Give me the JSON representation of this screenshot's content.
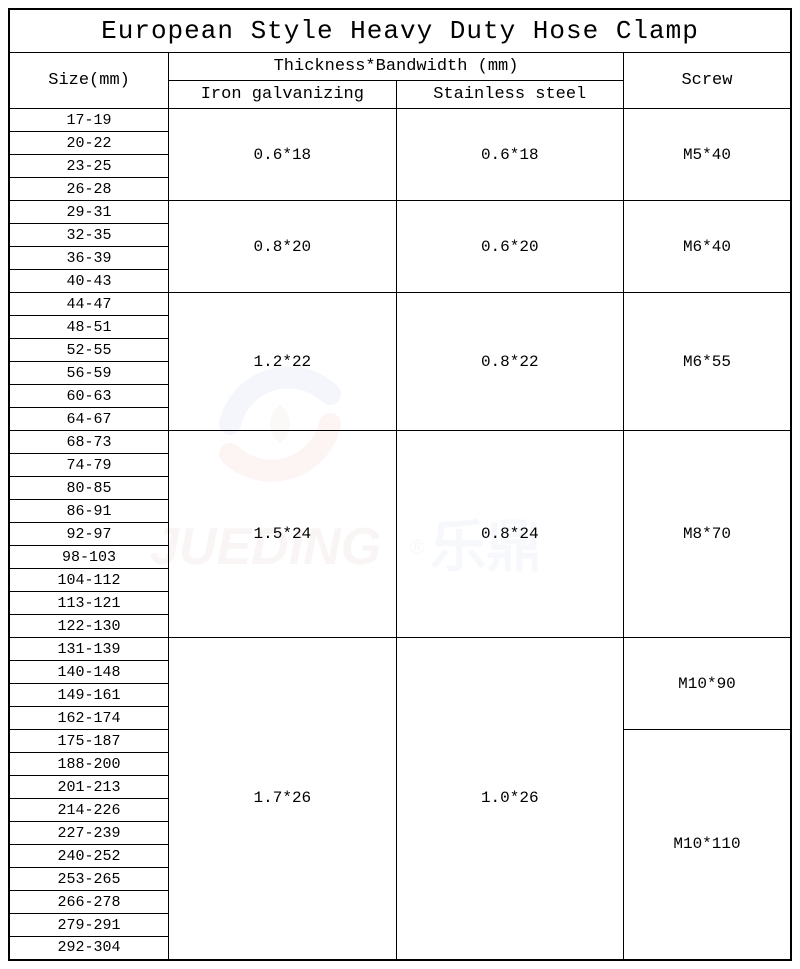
{
  "title": "European Style Heavy Duty Hose Clamp",
  "headers": {
    "size": "Size(mm)",
    "thickness_bandwidth": "Thickness*Bandwidth (mm)",
    "iron": "Iron galvanizing",
    "stainless": "Stainless steel",
    "screw": "Screw"
  },
  "groups": [
    {
      "sizes": [
        "17-19",
        "20-22",
        "23-25",
        "26-28"
      ],
      "iron": "0.6*18",
      "stainless": "0.6*18",
      "screws": [
        {
          "label": "M5*40",
          "span": 4
        }
      ]
    },
    {
      "sizes": [
        "29-31",
        "32-35",
        "36-39",
        "40-43"
      ],
      "iron": "0.8*20",
      "stainless": "0.6*20",
      "screws": [
        {
          "label": "M6*40",
          "span": 4
        }
      ]
    },
    {
      "sizes": [
        "44-47",
        "48-51",
        "52-55",
        "56-59",
        "60-63",
        "64-67"
      ],
      "iron": "1.2*22",
      "stainless": "0.8*22",
      "screws": [
        {
          "label": "M6*55",
          "span": 6
        }
      ]
    },
    {
      "sizes": [
        "68-73",
        "74-79",
        "80-85",
        "86-91",
        "92-97",
        "98-103",
        "104-112",
        "113-121",
        "122-130"
      ],
      "iron": "1.5*24",
      "stainless": "0.8*24",
      "screws": [
        {
          "label": "M8*70",
          "span": 9
        }
      ]
    },
    {
      "sizes": [
        "131-139",
        "140-148",
        "149-161",
        "162-174",
        "175-187",
        "188-200",
        "201-213",
        "214-226",
        "227-239",
        "240-252",
        "253-265",
        "266-278",
        "279-291",
        "292-304"
      ],
      "iron": "1.7*26",
      "stainless": "1.0*26",
      "screws": [
        {
          "label": "M10*90",
          "span": 4
        },
        {
          "label": "M10*110",
          "span": 10
        }
      ]
    }
  ],
  "col_widths": {
    "size": 160,
    "iron": 228,
    "stainless": 228,
    "screw": 168
  },
  "colors": {
    "border": "#000000",
    "bg": "#ffffff",
    "text": "#000000"
  }
}
